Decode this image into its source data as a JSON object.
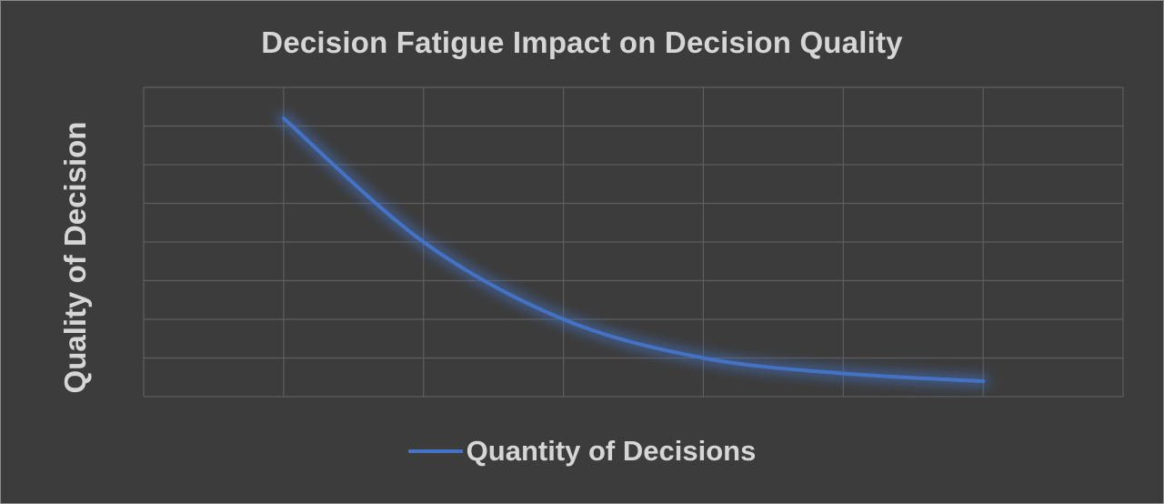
{
  "chart_data": {
    "type": "line",
    "title": "Decision Fatigue Impact on Decision Quality",
    "xlabel": "",
    "ylabel": "Quality of Decision",
    "x": [
      1,
      2,
      3,
      4,
      5,
      6
    ],
    "xlim": [
      0,
      7
    ],
    "ylim": [
      0,
      8
    ],
    "grid": true,
    "smooth": true,
    "legend": "bottom",
    "series": [
      {
        "name": "Quantity of Decisions",
        "color": "#4472c4",
        "values": [
          7.2,
          4.0,
          2.0,
          1.0,
          0.6,
          0.4
        ]
      }
    ]
  }
}
